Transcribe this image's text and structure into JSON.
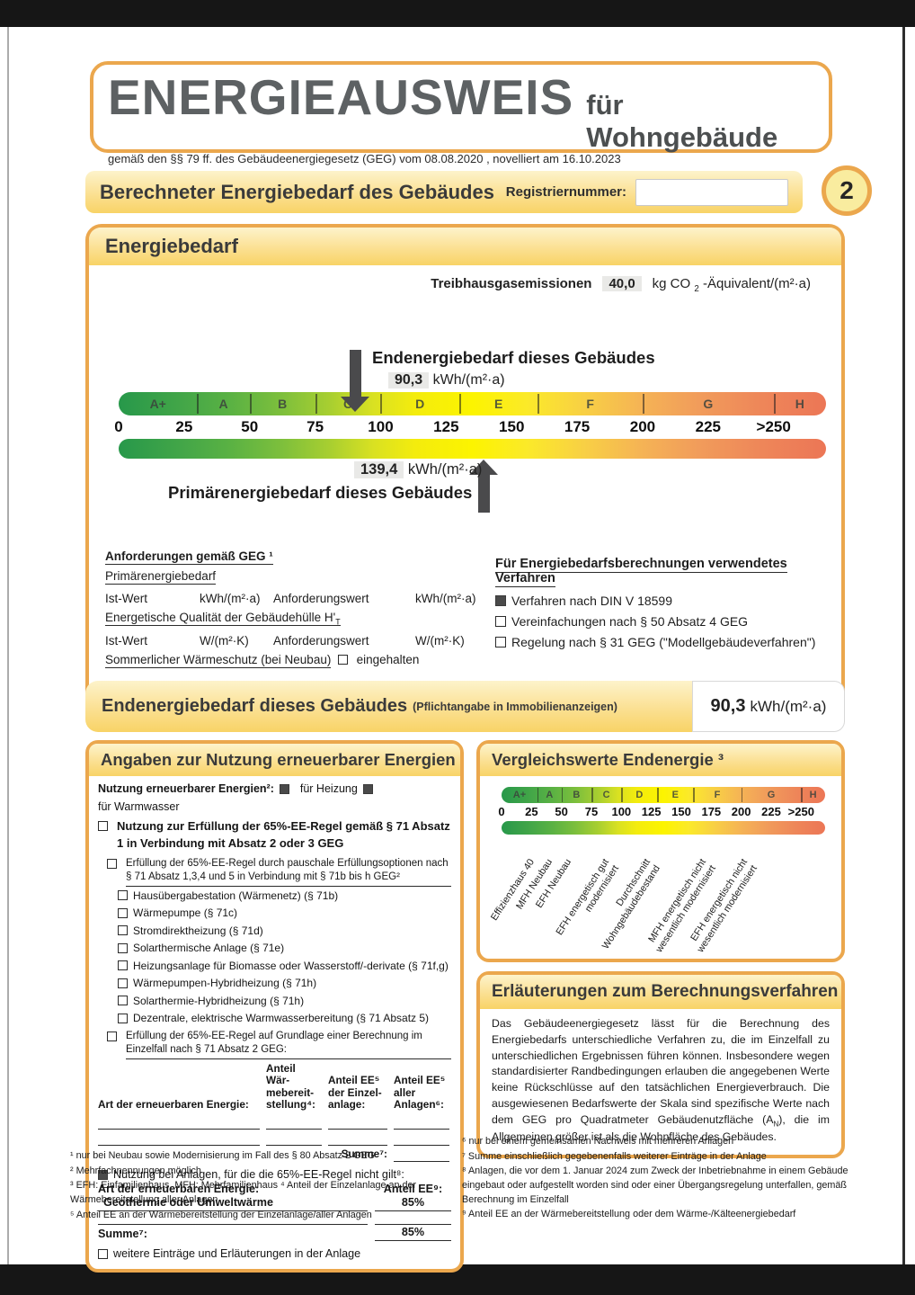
{
  "header": {
    "title": "ENERGIEAUSWEIS",
    "subtitle": "für Wohngebäude",
    "law_line": "gemäß den §§ 79 ff. des Gebäudeenergiegesetz (GEG) vom 08.08.2020 , novelliert am 16.10.2023"
  },
  "titlebar": {
    "title": "Berechneter Energiebedarf des Gebäudes",
    "reg_label": "Registriernummer:",
    "page_badge": "2"
  },
  "energiebedarf": {
    "section_title": "Energiebedarf",
    "ghg_label": "Treibhausgasemissionen",
    "ghg_value": "40,0",
    "ghg_unit_pre": "kg CO",
    "ghg_unit_sub": "2",
    "ghg_unit_post": "-Äquivalent/(m²·a)",
    "end_title": "Endenergiebedarf dieses Gebäudes",
    "end_value": "90,3",
    "end_unit": "kWh/(m²·a)",
    "primary_value": "139,4",
    "primary_unit": "kWh/(m²·a)",
    "primary_title": "Primärenergiebedarf dieses Gebäudes"
  },
  "scale": {
    "max": 270,
    "end_pointer": 90.3,
    "primary_pointer": 139.4,
    "classes": [
      {
        "letter": "A+",
        "from": 0,
        "to": 30
      },
      {
        "letter": "A",
        "from": 30,
        "to": 50
      },
      {
        "letter": "B",
        "from": 50,
        "to": 75
      },
      {
        "letter": "C",
        "from": 75,
        "to": 100
      },
      {
        "letter": "D",
        "from": 100,
        "to": 130
      },
      {
        "letter": "E",
        "from": 130,
        "to": 160
      },
      {
        "letter": "F",
        "from": 160,
        "to": 200
      },
      {
        "letter": "G",
        "from": 200,
        "to": 250
      },
      {
        "letter": "H",
        "from": 250,
        "to": 270
      }
    ],
    "ticks": [
      {
        "label": "0",
        "value": 0
      },
      {
        "label": "25",
        "value": 25
      },
      {
        "label": "50",
        "value": 50
      },
      {
        "label": "75",
        "value": 75
      },
      {
        "label": "100",
        "value": 100
      },
      {
        "label": "125",
        "value": 125
      },
      {
        "label": "150",
        "value": 150
      },
      {
        "label": "175",
        "value": 175
      },
      {
        "label": "200",
        "value": 200
      },
      {
        "label": "225",
        "value": 225
      },
      {
        "label": ">250",
        "value": 250
      }
    ]
  },
  "anforderungen": {
    "title": "Anforderungen gemäß GEG ¹",
    "sub1": "Primärenergiebedarf",
    "row1": [
      "Ist-Wert",
      "kWh/(m²·a)",
      "Anforderungswert",
      "kWh/(m²·a)"
    ],
    "huelle_label": "Energetische Qualität der Gebäudehülle H'",
    "huelle_sub": "T",
    "row2": [
      "Ist-Wert",
      "W/(m²·K)",
      "Anforderungswert",
      "W/(m²·K)"
    ],
    "sommer_label": "Sommerlicher Wärmeschutz (bei Neubau)",
    "sommer_check": "eingehalten"
  },
  "verfahren": {
    "title": "Für Energiebedarfsberechnungen verwendetes Verfahren",
    "items": [
      {
        "checked": true,
        "label": "Verfahren nach DIN V 18599"
      },
      {
        "checked": false,
        "label": "Vereinfachungen nach § 50 Absatz 4 GEG"
      },
      {
        "checked": false,
        "label": "Regelung nach § 31 GEG (\"Modellgebäudeverfahren\")"
      }
    ]
  },
  "endbar": {
    "title": "Endenergiebedarf dieses Gebäudes",
    "note": "(Pflichtangabe in Immobilienanzeigen)",
    "value": "90,3",
    "unit": "kWh/(m²·a)"
  },
  "renewables": {
    "section_title": "Angaben zur Nutzung erneuerbarer Energien",
    "intro_label": "Nutzung erneuerbarer Energien²:",
    "heating": "für Heizung",
    "hotwater": "für Warmwasser",
    "rule65": "Nutzung zur Erfüllung der 65%-EE-Regel gemäß § 71 Absatz 1 in Verbindung mit Absatz 2 oder 3 GEG",
    "pauschale": {
      "title": "Erfüllung der 65%-EE-Regel durch pauschale Erfüllungsoptionen nach § 71 Absatz 1,3,4 und 5 in Verbindung mit § 71b bis h GEG²",
      "options": [
        {
          "checked": false,
          "label": "Hausübergabestation (Wärmenetz) (§ 71b)"
        },
        {
          "checked": false,
          "label": "Wärmepumpe (§ 71c)"
        },
        {
          "checked": false,
          "label": "Stromdirektheizung (§ 71d)"
        },
        {
          "checked": false,
          "label": "Solarthermische Anlage (§ 71e)"
        },
        {
          "checked": false,
          "label": "Heizungsanlage für Biomasse oder Wasserstoff/-derivate (§ 71f,g)"
        },
        {
          "checked": false,
          "label": "Wärmepumpen-Hybridheizung (§ 71h)"
        },
        {
          "checked": false,
          "label": "Solarthermie-Hybridheizung (§ 71h)"
        },
        {
          "checked": false,
          "label": "Dezentrale, elektrische Warmwasserbereitung (§ 71 Absatz 5)"
        }
      ]
    },
    "einzelfall_title": "Erfüllung der 65%-EE-Regel auf Grundlage einer Berechnung im Einzelfall nach § 71 Absatz 2 GEG:",
    "table": {
      "art_label": "Art der erneuerbaren Energie:",
      "col2": "Anteil Wär-\nmebereit-\nstellung⁴:",
      "col3": "Anteil EE⁵\nder Einzel-\nanlage:",
      "col4": "Anteil EE⁵\naller\nAnlagen⁶:",
      "summe_label": "Summe⁷:"
    },
    "not_applicable_label": "Nutzung bei Anlagen, für die die 65%-EE-Regel nicht gilt⁸:",
    "table2": {
      "art_label": "Art der erneuerbaren Energie:",
      "anteil_label": "Anteil EE⁹:",
      "row_name": "Geothermie oder Umweltwärme",
      "row_value": "85%",
      "summe_label": "Summe⁷:",
      "summe_value": "85%"
    },
    "weitere_label": "weitere Einträge und Erläuterungen in der Anlage"
  },
  "vergleich": {
    "section_title": "Vergleichswerte Endenergie ³",
    "labels": [
      {
        "text": "Effizienzhaus 40",
        "anchor_pct": 8
      },
      {
        "text": "MFH Neubau",
        "anchor_pct": 13.5
      },
      {
        "text": "EFH Neubau",
        "anchor_pct": 19.5
      },
      {
        "text": "EFH energetisch gut\nmodernisiert",
        "anchor_pct": 31
      },
      {
        "text": "Durchschnitt\nWohngebäudebestand",
        "anchor_pct": 44
      },
      {
        "text": "MFH energetisch nicht\nwesentlich modernisiert",
        "anchor_pct": 61
      },
      {
        "text": "EFH energetisch nicht\nwesentlich modernisiert",
        "anchor_pct": 74
      }
    ]
  },
  "erlaeuterungen": {
    "section_title": "Erläuterungen zum Berechnungsverfahren",
    "text_p1": "Das Gebäudeenergiegesetz lässt für die Berechnung des Energiebedarfs unterschiedliche Verfahren zu, die im Einzelfall zu unterschiedlichen Ergebnissen führen können. Insbesondere wegen standardisierter Randbedingungen erlauben die angegebenen Werte keine Rückschlüsse auf den tatsächlichen Energieverbrauch. Die ausgewiesenen Bedarfswerte der Skala sind spezifische Werte nach dem GEG pro Quadratmeter Gebäudenutzfläche (A",
    "text_sub": "N",
    "text_p2": "), die im Allgemeinen größer ist als die Wohnfläche des Gebäudes."
  },
  "footnotes": {
    "left": [
      "¹ nur bei Neubau sowie Modernisierung im Fall des § 80 Absatz 2 GEG",
      "² Mehrfachnennungen möglich",
      "³ EFH: Einfamilienhaus, MFH: Mehrfamilienhaus ⁴ Anteil der Einzelanlage an der Wärmebereitstellung aller Anlagen",
      "⁵ Anteil EE an der Wärmebereitstellung der Einzelanlage/aller Anlagen"
    ],
    "right": [
      "⁶ nur bei einem gemeinsamen Nachweis mit mehreren Anlagen",
      "⁷ Summe einschließlich gegebenenfalls weiterer Einträge in der Anlage",
      "⁸ Anlagen, die vor dem 1. Januar 2024 zum Zweck der Inbetriebnahme in einem Gebäude eingebaut oder aufgestellt worden sind oder einer Übergangsregelung unterfallen, gemäß Berechnung im Einzelfall",
      "⁹ Anteil EE an der Wärmebereitstellung oder dem Wärme-/Kälteenergiebedarf"
    ]
  }
}
